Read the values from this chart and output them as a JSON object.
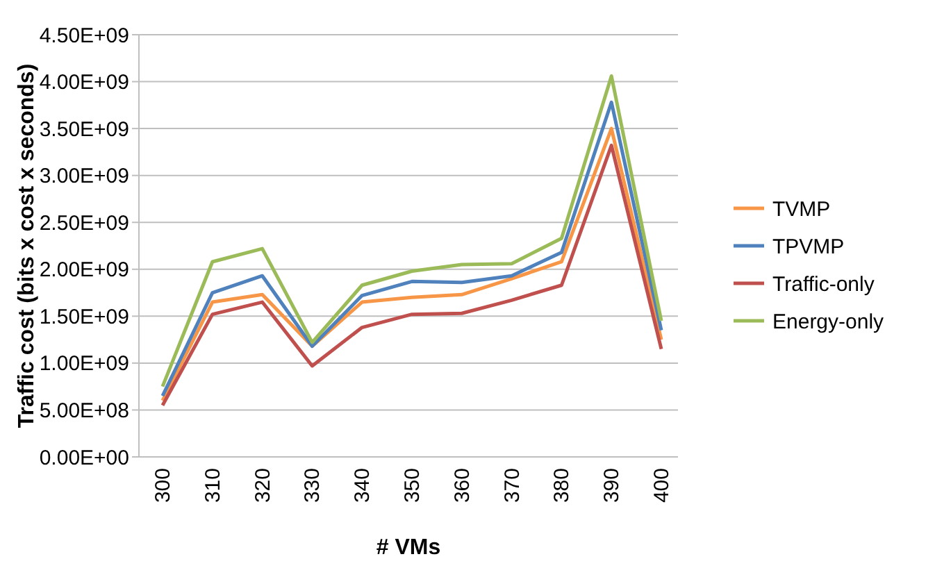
{
  "chart_data": {
    "type": "line",
    "xlabel": "# VMs",
    "ylabel": "Traffic cost (bits x cost x seconds)",
    "categories": [
      "300",
      "310",
      "320",
      "330",
      "340",
      "350",
      "360",
      "370",
      "380",
      "390",
      "400"
    ],
    "series": [
      {
        "name": "TVMP",
        "color": "#f79646",
        "values": [
          600000000.0,
          1650000000.0,
          1730000000.0,
          1180000000.0,
          1650000000.0,
          1700000000.0,
          1730000000.0,
          1900000000.0,
          2080000000.0,
          3500000000.0,
          1250000000.0
        ]
      },
      {
        "name": "TPVMP",
        "color": "#4f81bd",
        "values": [
          650000000.0,
          1750000000.0,
          1930000000.0,
          1180000000.0,
          1720000000.0,
          1870000000.0,
          1860000000.0,
          1930000000.0,
          2180000000.0,
          3780000000.0,
          1350000000.0
        ]
      },
      {
        "name": "Traffic-only",
        "color": "#c0504d",
        "values": [
          550000000.0,
          1520000000.0,
          1650000000.0,
          970000000.0,
          1380000000.0,
          1520000000.0,
          1530000000.0,
          1670000000.0,
          1830000000.0,
          3320000000.0,
          1150000000.0
        ]
      },
      {
        "name": "Energy-only",
        "color": "#9bbb59",
        "values": [
          750000000.0,
          2080000000.0,
          2220000000.0,
          1220000000.0,
          1830000000.0,
          1980000000.0,
          2050000000.0,
          2060000000.0,
          2330000000.0,
          4060000000.0,
          1450000000.0
        ]
      }
    ],
    "ylim": [
      0,
      4500000000.0
    ],
    "yticks": [
      {
        "value": 0,
        "label": "0.00E+00"
      },
      {
        "value": 500000000.0,
        "label": "5.00E+08"
      },
      {
        "value": 1000000000.0,
        "label": "1.00E+09"
      },
      {
        "value": 1500000000.0,
        "label": "1.50E+09"
      },
      {
        "value": 2000000000.0,
        "label": "2.00E+09"
      },
      {
        "value": 2500000000.0,
        "label": "2.50E+09"
      },
      {
        "value": 3000000000.0,
        "label": "3.00E+09"
      },
      {
        "value": 3500000000.0,
        "label": "3.50E+09"
      },
      {
        "value": 4000000000.0,
        "label": "4.00E+09"
      },
      {
        "value": 4500000000.0,
        "label": "4.50E+09"
      }
    ],
    "grid": "y",
    "legend": "right",
    "marker": "none",
    "line_style": "solid"
  }
}
